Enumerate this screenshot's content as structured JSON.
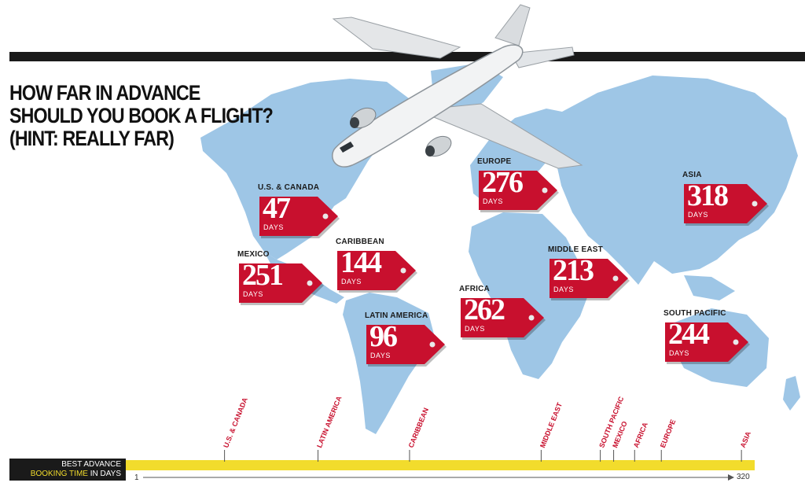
{
  "title_lines": [
    "HOW FAR IN ADVANCE",
    "SHOULD YOU BOOK A FLIGHT?",
    "(HINT: REALLY FAR)"
  ],
  "days_label": "DAYS",
  "colors": {
    "ocean": "#ffffff",
    "land": "#9ec6e6",
    "tag": "#c8102e",
    "axis_bar": "#f2dc2c",
    "axis_label": "#c8102e",
    "dark": "#1a1a1a"
  },
  "legend": {
    "line1": "BEST ADVANCE",
    "highlight": "BOOKING TIME",
    "line2_rest": " IN DAYS"
  },
  "chart_data": {
    "type": "bar",
    "title": "HOW FAR IN ADVANCE SHOULD YOU BOOK A FLIGHT? (HINT: REALLY FAR)",
    "xlabel": "BEST ADVANCE BOOKING TIME IN DAYS",
    "xlim": [
      1,
      320
    ],
    "axis_min_label": "1",
    "axis_max_label": "320",
    "unit": "DAYS",
    "categories": [
      "U.S. & CANADA",
      "MEXICO",
      "CARIBBEAN",
      "LATIN AMERICA",
      "AFRICA",
      "EUROPE",
      "MIDDLE EAST",
      "ASIA",
      "SOUTH PACIFIC"
    ],
    "values": [
      47,
      251,
      144,
      96,
      262,
      276,
      213,
      318,
      244
    ]
  }
}
